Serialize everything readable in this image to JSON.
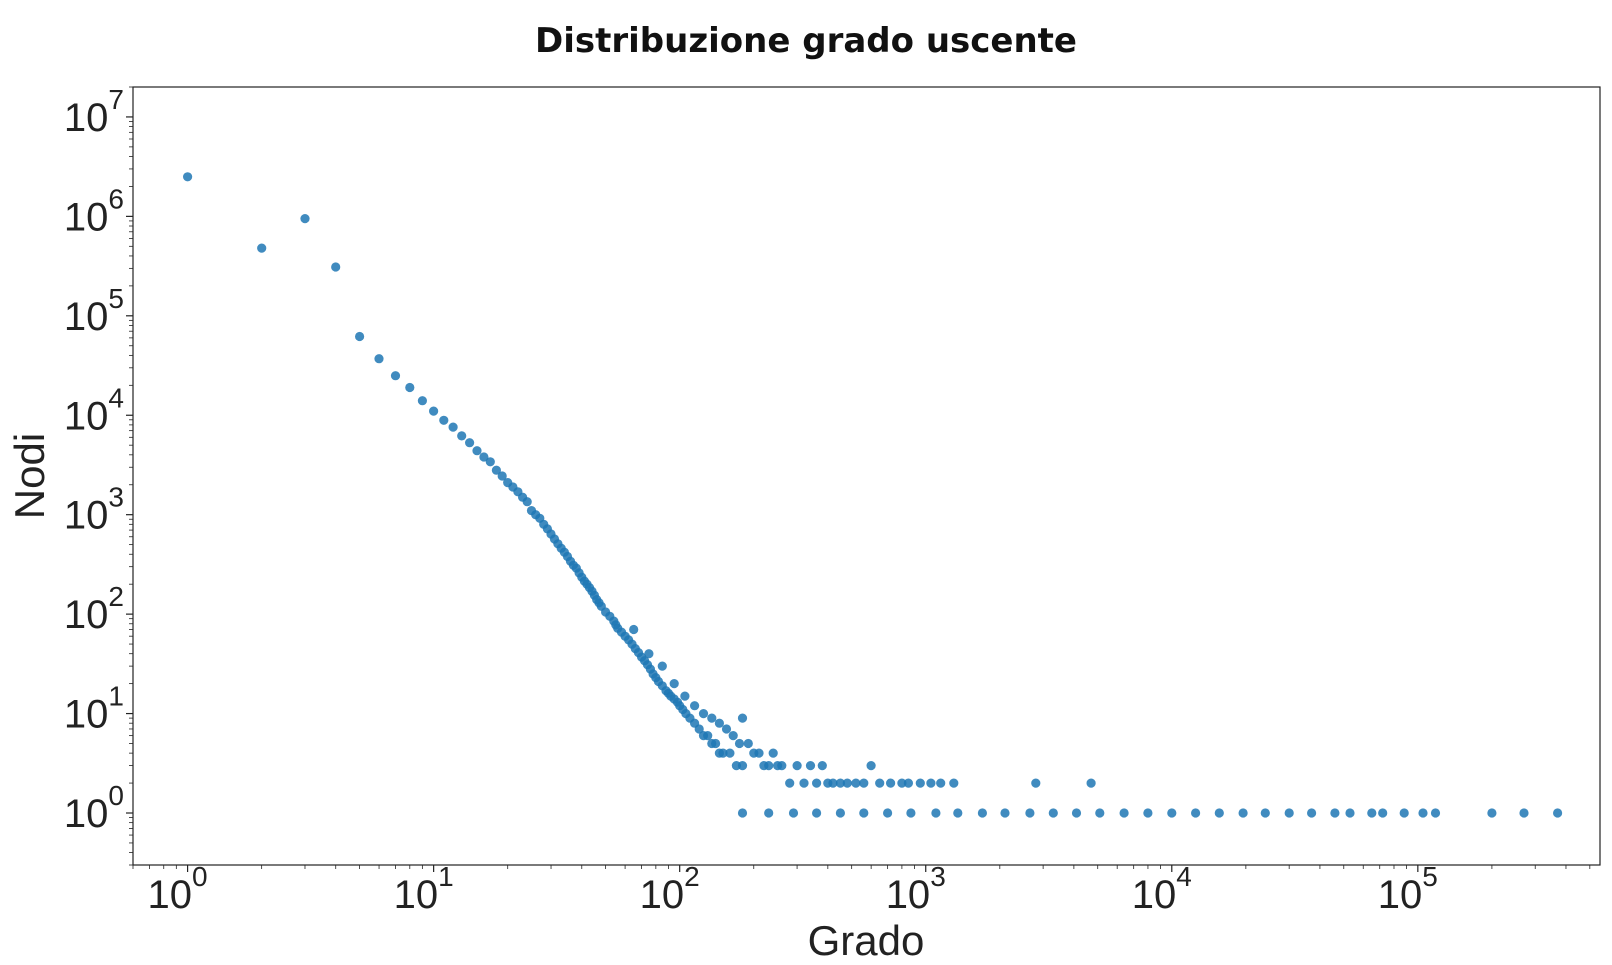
{
  "chart_data": {
    "type": "scatter",
    "title": "Distribuzione grado uscente",
    "xlabel": "Grado",
    "ylabel": "Nodi",
    "xscale": "log",
    "yscale": "log",
    "xlim": [
      0.6,
      550000
    ],
    "ylim": [
      0.3,
      20000000
    ],
    "xticks": [
      1,
      10,
      100,
      1000,
      10000,
      100000
    ],
    "yticks": [
      1,
      10,
      100,
      1000,
      10000,
      100000,
      1000000,
      10000000
    ],
    "grid": false,
    "legend": "none",
    "marker_color": "#1f77b4",
    "series": [
      {
        "points": [
          [
            1,
            2500000
          ],
          [
            2,
            480000
          ],
          [
            3,
            950000
          ],
          [
            4,
            310000
          ],
          [
            5,
            62000
          ],
          [
            6,
            37000
          ],
          [
            7,
            25000
          ],
          [
            8,
            19000
          ],
          [
            9,
            14000
          ],
          [
            10,
            11000
          ],
          [
            11,
            8900
          ],
          [
            12,
            7600
          ],
          [
            13,
            6200
          ],
          [
            14,
            5300
          ],
          [
            15,
            4400
          ],
          [
            16,
            3800
          ],
          [
            17,
            3400
          ],
          [
            18,
            2800
          ],
          [
            19,
            2450
          ],
          [
            20,
            2100
          ],
          [
            21,
            1900
          ],
          [
            22,
            1700
          ],
          [
            23,
            1500
          ],
          [
            24,
            1350
          ],
          [
            25,
            1100
          ],
          [
            26,
            1000
          ],
          [
            27,
            920
          ],
          [
            28,
            800
          ],
          [
            29,
            720
          ],
          [
            30,
            640
          ],
          [
            31,
            570
          ],
          [
            32,
            510
          ],
          [
            33,
            460
          ],
          [
            34,
            420
          ],
          [
            35,
            380
          ],
          [
            36,
            340
          ],
          [
            37,
            310
          ],
          [
            38,
            290
          ],
          [
            39,
            260
          ],
          [
            40,
            235
          ],
          [
            41,
            215
          ],
          [
            42,
            200
          ],
          [
            43,
            185
          ],
          [
            44,
            170
          ],
          [
            45,
            155
          ],
          [
            46,
            140
          ],
          [
            47,
            130
          ],
          [
            48,
            120
          ],
          [
            50,
            105
          ],
          [
            52,
            95
          ],
          [
            54,
            85
          ],
          [
            55,
            78
          ],
          [
            56,
            72
          ],
          [
            58,
            66
          ],
          [
            60,
            60
          ],
          [
            62,
            55
          ],
          [
            64,
            50
          ],
          [
            66,
            45
          ],
          [
            68,
            41
          ],
          [
            70,
            37
          ],
          [
            72,
            34
          ],
          [
            74,
            31
          ],
          [
            76,
            28
          ],
          [
            78,
            25
          ],
          [
            80,
            23
          ],
          [
            82,
            21
          ],
          [
            85,
            19
          ],
          [
            88,
            17
          ],
          [
            90,
            16
          ],
          [
            92,
            15
          ],
          [
            95,
            14
          ],
          [
            98,
            13
          ],
          [
            100,
            12
          ],
          [
            103,
            11
          ],
          [
            106,
            10
          ],
          [
            110,
            9
          ],
          [
            115,
            8
          ],
          [
            120,
            7
          ],
          [
            125,
            6
          ],
          [
            130,
            6
          ],
          [
            135,
            5
          ],
          [
            140,
            5
          ],
          [
            145,
            4
          ],
          [
            150,
            4
          ],
          [
            160,
            4
          ],
          [
            170,
            3
          ],
          [
            180,
            3
          ],
          [
            65,
            70
          ],
          [
            75,
            40
          ],
          [
            85,
            30
          ],
          [
            95,
            20
          ],
          [
            105,
            15
          ],
          [
            115,
            12
          ],
          [
            125,
            10
          ],
          [
            135,
            9
          ],
          [
            145,
            8
          ],
          [
            155,
            7
          ],
          [
            165,
            6
          ],
          [
            175,
            5
          ],
          [
            180,
            9
          ],
          [
            190,
            5
          ],
          [
            200,
            4
          ],
          [
            210,
            4
          ],
          [
            220,
            3
          ],
          [
            230,
            3
          ],
          [
            240,
            4
          ],
          [
            250,
            3
          ],
          [
            260,
            3
          ],
          [
            280,
            2
          ],
          [
            300,
            3
          ],
          [
            320,
            2
          ],
          [
            340,
            3
          ],
          [
            360,
            2
          ],
          [
            380,
            3
          ],
          [
            400,
            2
          ],
          [
            420,
            2
          ],
          [
            450,
            2
          ],
          [
            480,
            2
          ],
          [
            520,
            2
          ],
          [
            560,
            2
          ],
          [
            600,
            3
          ],
          [
            650,
            2
          ],
          [
            720,
            2
          ],
          [
            800,
            2
          ],
          [
            850,
            2
          ],
          [
            950,
            2
          ],
          [
            1050,
            2
          ],
          [
            1150,
            2
          ],
          [
            1300,
            2
          ],
          [
            2800,
            2
          ],
          [
            4700,
            2
          ],
          [
            180,
            1
          ],
          [
            230,
            1
          ],
          [
            290,
            1
          ],
          [
            360,
            1
          ],
          [
            450,
            1
          ],
          [
            560,
            1
          ],
          [
            700,
            1
          ],
          [
            870,
            1
          ],
          [
            1100,
            1
          ],
          [
            1350,
            1
          ],
          [
            1700,
            1
          ],
          [
            2100,
            1
          ],
          [
            2650,
            1
          ],
          [
            3300,
            1
          ],
          [
            4100,
            1
          ],
          [
            5100,
            1
          ],
          [
            6400,
            1
          ],
          [
            8000,
            1
          ],
          [
            10000,
            1
          ],
          [
            12500,
            1
          ],
          [
            15600,
            1
          ],
          [
            19500,
            1
          ],
          [
            24000,
            1
          ],
          [
            30000,
            1
          ],
          [
            37000,
            1
          ],
          [
            46000,
            1
          ],
          [
            53000,
            1
          ],
          [
            65000,
            1
          ],
          [
            72000,
            1
          ],
          [
            88000,
            1
          ],
          [
            105000,
            1
          ],
          [
            118000,
            1
          ],
          [
            200000,
            1
          ],
          [
            270000,
            1
          ],
          [
            370000,
            1
          ]
        ]
      }
    ]
  }
}
